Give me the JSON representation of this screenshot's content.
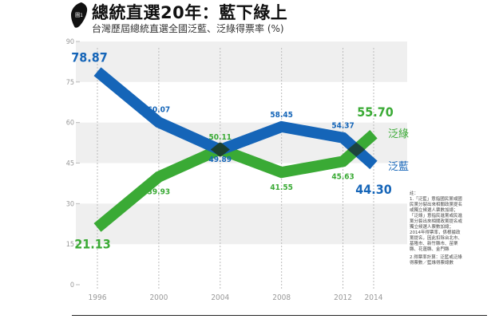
{
  "header": {
    "title": "總統直選20年：藍下綠上",
    "subtitle": "台灣歷屆總統直選全國泛藍、泛綠得票率 (%)",
    "icon": "taiwan-map-icon",
    "icon_label": "圖1"
  },
  "colors": {
    "blue": "#1565b8",
    "green": "#3aaa35",
    "band": "#efefef",
    "axis_text": "#999999"
  },
  "chart_data": {
    "type": "line",
    "title": "總統直選20年：藍下綠上",
    "subtitle": "台灣歷屆總統直選全國泛藍、泛綠得票率 (%)",
    "x": [
      1996,
      2000,
      2004,
      2008,
      2012,
      2014
    ],
    "x_tick_labels": [
      "1996",
      "2000",
      "2004",
      "2008",
      "2012",
      "2014"
    ],
    "y_ticks": [
      "0",
      "15",
      "30",
      "45",
      "60",
      "75",
      "90"
    ],
    "ylim": [
      0,
      90
    ],
    "grid": "alternating horizontal bands",
    "series": [
      {
        "name": "泛藍",
        "color": "#1565b8",
        "values": [
          78.87,
          60.07,
          49.89,
          58.45,
          54.37,
          44.3
        ],
        "labels": [
          "78.87",
          "60.07",
          "49.89",
          "58.45",
          "54.37",
          "44.30"
        ]
      },
      {
        "name": "泛綠",
        "color": "#3aaa35",
        "values": [
          21.13,
          39.93,
          50.11,
          41.55,
          45.63,
          55.7
        ],
        "labels": [
          "21.13",
          "39.93",
          "50.11",
          "41.55",
          "45.63",
          "55.70"
        ]
      }
    ]
  },
  "notes": {
    "heading": "註：",
    "items": [
      "1.「泛藍」意指國民黨或國民黨分裂出來相關政黨提名或獨立候選人票數加總；「泛綠」意指民進黨或民進黨分裂出來相關政黨提名或獨立候選人票數加總；2014年得票率，係根據政黨提名，因此扣除台北市、基隆市、新竹縣市、苗栗縣、花蓮縣、金門縣",
      "2.得票率計算：泛藍或泛綠得票數／藍綠得票總數"
    ]
  }
}
